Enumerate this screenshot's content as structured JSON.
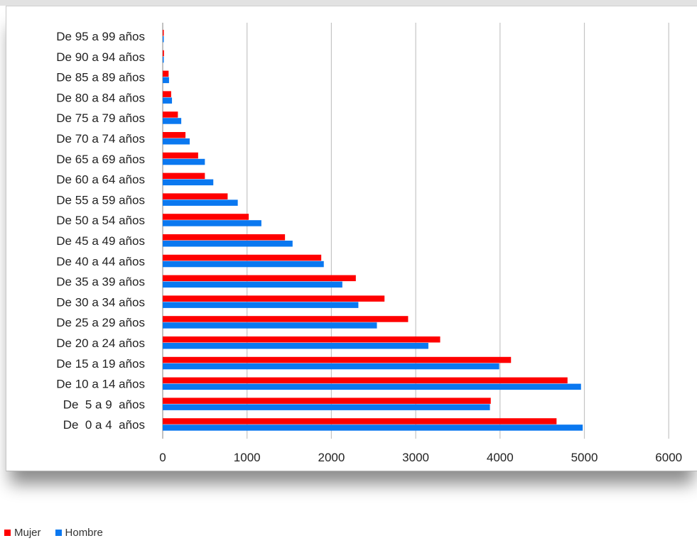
{
  "chart_data": {
    "type": "bar",
    "orientation": "horizontal",
    "categories": [
      "De 95 a 99 años",
      "De 90 a 94 años",
      "De 85 a 89 años",
      "De 80 a 84 años",
      "De 75 a 79 años",
      "De 70 a 74 años",
      "De 65 a 69 años",
      "De 60 a 64 años",
      "De 55 a 59 años",
      "De 50 a 54 años",
      "De 45 a 49 años",
      "De 40 a 44 años",
      "De 35 a 39 años",
      "De 30 a 34 años",
      "De 25 a 29 años",
      "De 20 a 24 años",
      "De 15 a 19 años",
      "De 10 a 14 años",
      "De  5 a 9  años",
      "De  0 a 4  años"
    ],
    "series": [
      {
        "name": "Mujer",
        "color": "#ff0000",
        "values": [
          5,
          15,
          70,
          100,
          180,
          270,
          420,
          500,
          770,
          1020,
          1450,
          1880,
          2290,
          2630,
          2910,
          3290,
          4130,
          4800,
          3890,
          4670
        ]
      },
      {
        "name": "Hombre",
        "color": "#0a78f0",
        "values": [
          10,
          10,
          75,
          110,
          220,
          320,
          500,
          600,
          890,
          1170,
          1540,
          1910,
          2130,
          2320,
          2540,
          3150,
          3990,
          4960,
          3880,
          4980
        ]
      }
    ],
    "xlim": [
      0,
      6000
    ],
    "xticks": [
      "0",
      "1000",
      "2000",
      "3000",
      "4000",
      "5000",
      "6000"
    ],
    "grid": true,
    "legend_position": "bottom-left",
    "title": "",
    "xlabel": "",
    "ylabel": ""
  }
}
